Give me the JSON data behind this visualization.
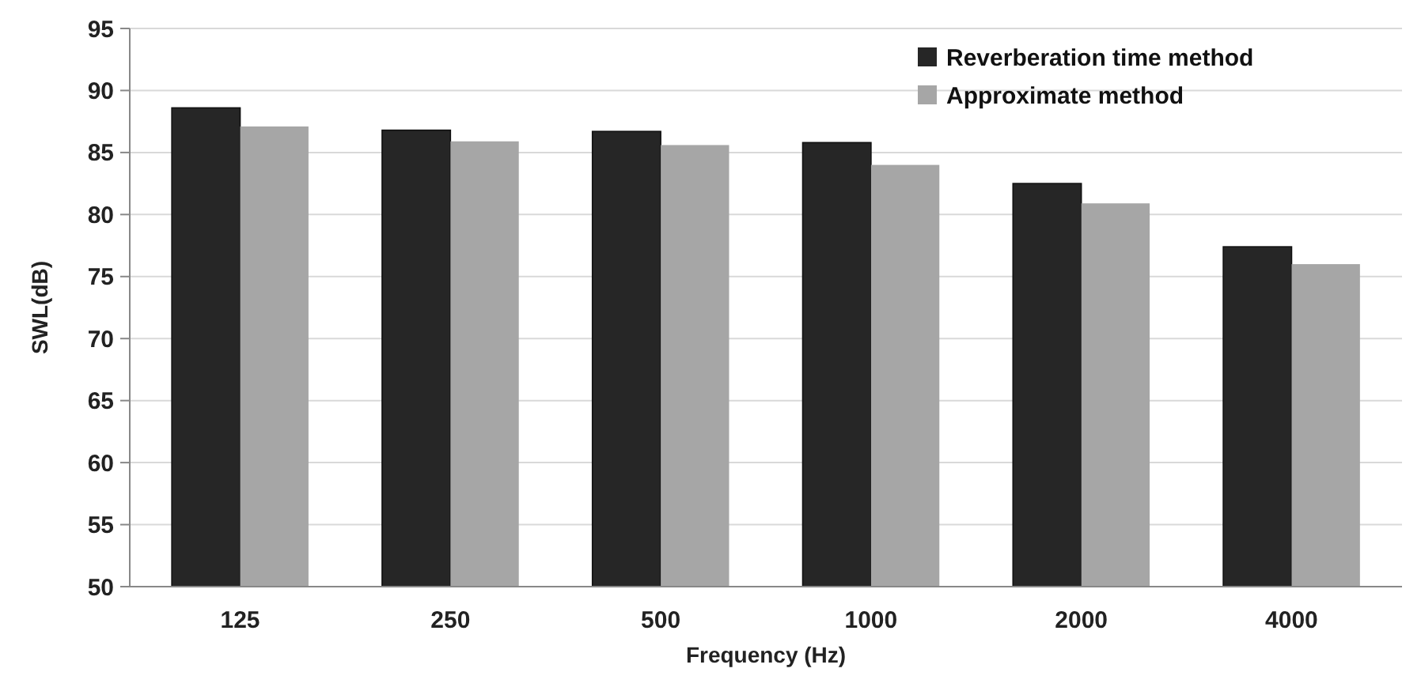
{
  "chart_data": {
    "type": "bar",
    "xlabel": "Frequency (Hz)",
    "ylabel": "SWL(dB)",
    "categories": [
      "125",
      "250",
      "500",
      "1000",
      "2000",
      "4000"
    ],
    "series": [
      {
        "name": "Reverberation time method",
        "color": "#262626",
        "values": [
          88.6,
          86.8,
          86.7,
          85.8,
          82.5,
          77.4
        ]
      },
      {
        "name": "Approximate method",
        "color": "#a6a6a6",
        "values": [
          87.1,
          85.9,
          85.6,
          84.0,
          80.9,
          76.0
        ]
      }
    ],
    "ylim": [
      50,
      95
    ],
    "yticks": [
      50,
      55,
      60,
      65,
      70,
      75,
      80,
      85,
      90,
      95
    ],
    "grid": "y",
    "legend": "top right"
  }
}
